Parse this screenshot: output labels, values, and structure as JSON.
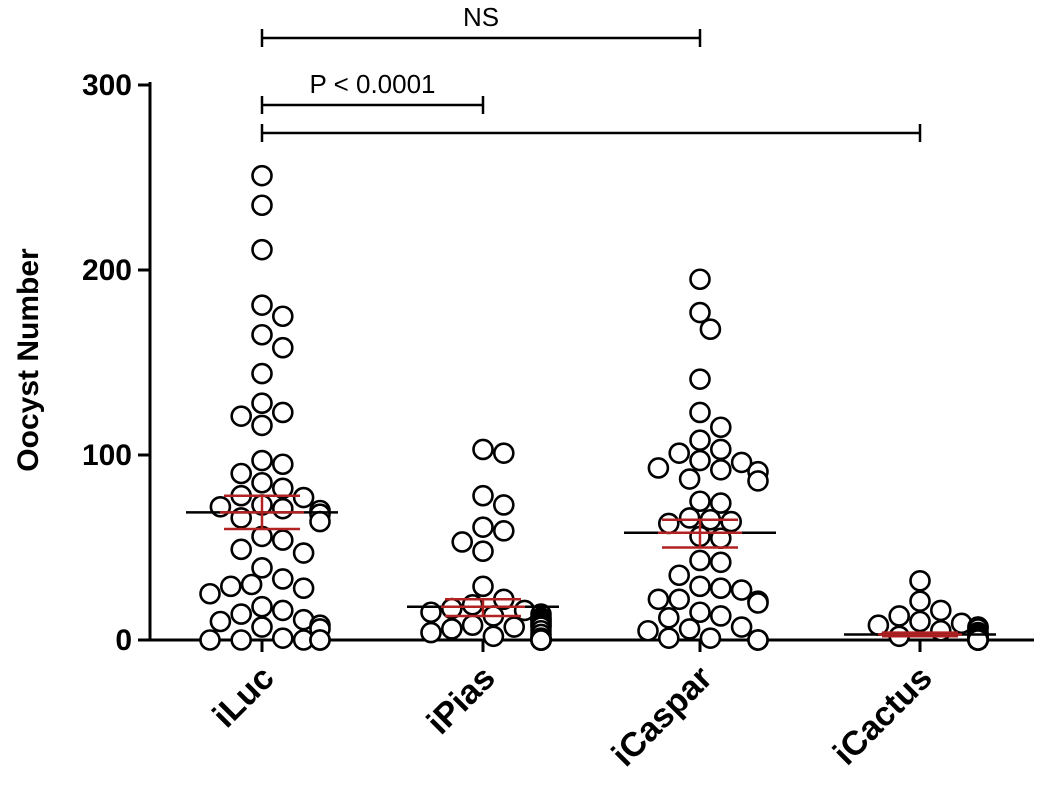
{
  "chart_data": {
    "type": "scatter",
    "ylabel": "Oocyst Number",
    "xlabel": "",
    "ylim": [
      0,
      300
    ],
    "yticks": [
      0,
      100,
      200,
      300
    ],
    "categories": [
      "iLuc",
      "iPias",
      "iCaspar",
      "iCactus"
    ],
    "groups": [
      {
        "name": "iLuc",
        "mean": 69,
        "sem_low": 60,
        "sem_high": 78,
        "points": [
          251,
          235,
          211,
          181,
          175,
          165,
          158,
          144,
          128,
          123,
          121,
          116,
          97,
          95,
          90,
          85,
          82,
          78,
          77,
          73,
          72,
          71,
          70,
          68,
          66,
          64,
          56,
          54,
          49,
          47,
          39,
          33,
          30,
          29,
          28,
          25,
          18,
          16,
          14,
          11,
          10,
          8,
          7,
          6,
          1,
          0,
          0,
          0,
          0,
          0,
          0
        ]
      },
      {
        "name": "iPias",
        "mean": 18,
        "sem_low": 13,
        "sem_high": 22,
        "points": [
          103,
          101,
          78,
          73,
          61,
          59,
          53,
          48,
          29,
          22,
          19,
          17,
          16,
          15,
          14,
          13,
          12,
          11,
          10,
          9,
          8,
          8,
          7,
          7,
          6,
          5,
          4,
          3,
          2,
          1,
          1,
          0,
          0,
          0,
          0,
          0,
          0,
          0,
          0,
          0,
          0
        ]
      },
      {
        "name": "iCaspar",
        "mean": 58,
        "sem_low": 50,
        "sem_high": 65,
        "points": [
          195,
          177,
          168,
          141,
          123,
          115,
          108,
          103,
          101,
          97,
          96,
          93,
          92,
          91,
          87,
          86,
          75,
          74,
          66,
          65,
          64,
          63,
          56,
          55,
          43,
          42,
          35,
          29,
          28,
          27,
          22,
          22,
          21,
          20,
          15,
          13,
          12,
          7,
          6,
          5,
          1,
          1,
          0,
          0,
          0,
          0
        ]
      },
      {
        "name": "iCactus",
        "mean": 3,
        "sem_low": 2,
        "sem_high": 4,
        "points": [
          32,
          21,
          16,
          13,
          10,
          9,
          8,
          7,
          7,
          6,
          5,
          4,
          3,
          2,
          2,
          1,
          1,
          1,
          0,
          0,
          0,
          0,
          0,
          0,
          0,
          0,
          0,
          0,
          0,
          0,
          0,
          0,
          0,
          0,
          0,
          0,
          0,
          0
        ]
      }
    ],
    "comparisons": [
      {
        "from": "iLuc",
        "to": "iCaspar",
        "label": "NS"
      },
      {
        "from": "iLuc",
        "to": "iPias",
        "label": "P < 0.0001"
      },
      {
        "from": "iLuc",
        "to": "iCactus",
        "label": ""
      }
    ],
    "colors": {
      "points": "#000000",
      "axis": "#000000",
      "mean_line": "#000000",
      "error_bar": "#b22222"
    }
  }
}
